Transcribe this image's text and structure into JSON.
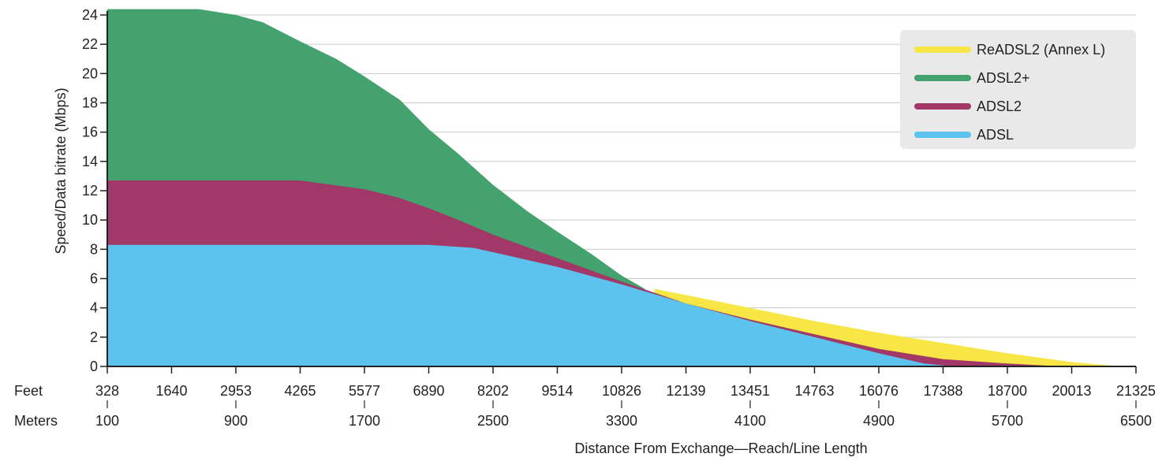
{
  "chart_data": {
    "type": "area",
    "xlabel": "Distance From Exchange—Reach/Line Length",
    "ylabel": "Speed/Data bitrate (Mbps)",
    "ylim": [
      0,
      24
    ],
    "yticks": [
      "0",
      "2",
      "4",
      "6",
      "8",
      "10",
      "12",
      "14",
      "16",
      "18",
      "20",
      "22",
      "24"
    ],
    "xlim": [
      328,
      21325
    ],
    "feet_label": "Feet",
    "meters_label": "Meters",
    "feet_ticks": [
      "328",
      "1640",
      "2953",
      "4265",
      "5577",
      "6890",
      "8202",
      "9514",
      "10826",
      "12139",
      "13451",
      "14763",
      "16076",
      "17388",
      "18700",
      "20013",
      "21325"
    ],
    "meters_ticks": [
      {
        "label": "100",
        "feet": 328
      },
      {
        "label": "900",
        "feet": 2953
      },
      {
        "label": "1700",
        "feet": 5577
      },
      {
        "label": "2500",
        "feet": 8202
      },
      {
        "label": "3300",
        "feet": 10826
      },
      {
        "label": "4100",
        "feet": 13451
      },
      {
        "label": "4900",
        "feet": 16076
      },
      {
        "label": "5700",
        "feet": 18700
      },
      {
        "label": "6500",
        "feet": 21325
      }
    ],
    "grid": true,
    "legend_position": "top-right",
    "series": [
      {
        "name": "ReADSL2 (Annex L)",
        "color": "#f8e646",
        "points": [
          [
            11500,
            5.3
          ],
          [
            13451,
            4.0
          ],
          [
            14763,
            3.1
          ],
          [
            16076,
            2.3
          ],
          [
            17388,
            1.6
          ],
          [
            18700,
            0.9
          ],
          [
            20013,
            0.3
          ],
          [
            21000,
            0
          ]
        ]
      },
      {
        "name": "ADSL2+",
        "color": "#43a26d",
        "points": [
          [
            328,
            24.4
          ],
          [
            2200,
            24.4
          ],
          [
            2953,
            24.0
          ],
          [
            3500,
            23.5
          ],
          [
            4265,
            22.2
          ],
          [
            5000,
            21.0
          ],
          [
            5577,
            19.8
          ],
          [
            6300,
            18.2
          ],
          [
            6890,
            16.2
          ],
          [
            7500,
            14.5
          ],
          [
            8202,
            12.4
          ],
          [
            8900,
            10.6
          ],
          [
            9514,
            9.2
          ],
          [
            10200,
            7.7
          ],
          [
            10826,
            6.2
          ],
          [
            11300,
            5.3
          ]
        ]
      },
      {
        "name": "ADSL2",
        "color": "#a23867",
        "points": [
          [
            328,
            12.7
          ],
          [
            2953,
            12.7
          ],
          [
            4265,
            12.7
          ],
          [
            5577,
            12.1
          ],
          [
            6300,
            11.5
          ],
          [
            6890,
            10.8
          ],
          [
            7500,
            10.0
          ],
          [
            8202,
            9.0
          ],
          [
            9514,
            7.4
          ],
          [
            10826,
            5.8
          ],
          [
            12139,
            4.3
          ],
          [
            13451,
            3.2
          ],
          [
            14763,
            2.2
          ],
          [
            16076,
            1.2
          ],
          [
            17388,
            0.5
          ],
          [
            18700,
            0.2
          ],
          [
            19800,
            0
          ]
        ]
      },
      {
        "name": "ADSL",
        "color": "#5bc3ed",
        "points": [
          [
            328,
            8.3
          ],
          [
            2953,
            8.3
          ],
          [
            5577,
            8.3
          ],
          [
            6890,
            8.3
          ],
          [
            7800,
            8.1
          ],
          [
            8202,
            7.8
          ],
          [
            9514,
            6.8
          ],
          [
            10826,
            5.6
          ],
          [
            12139,
            4.3
          ],
          [
            13451,
            3.1
          ],
          [
            14763,
            2.0
          ],
          [
            16076,
            0.9
          ],
          [
            17000,
            0.2
          ],
          [
            17600,
            0
          ]
        ]
      }
    ]
  }
}
